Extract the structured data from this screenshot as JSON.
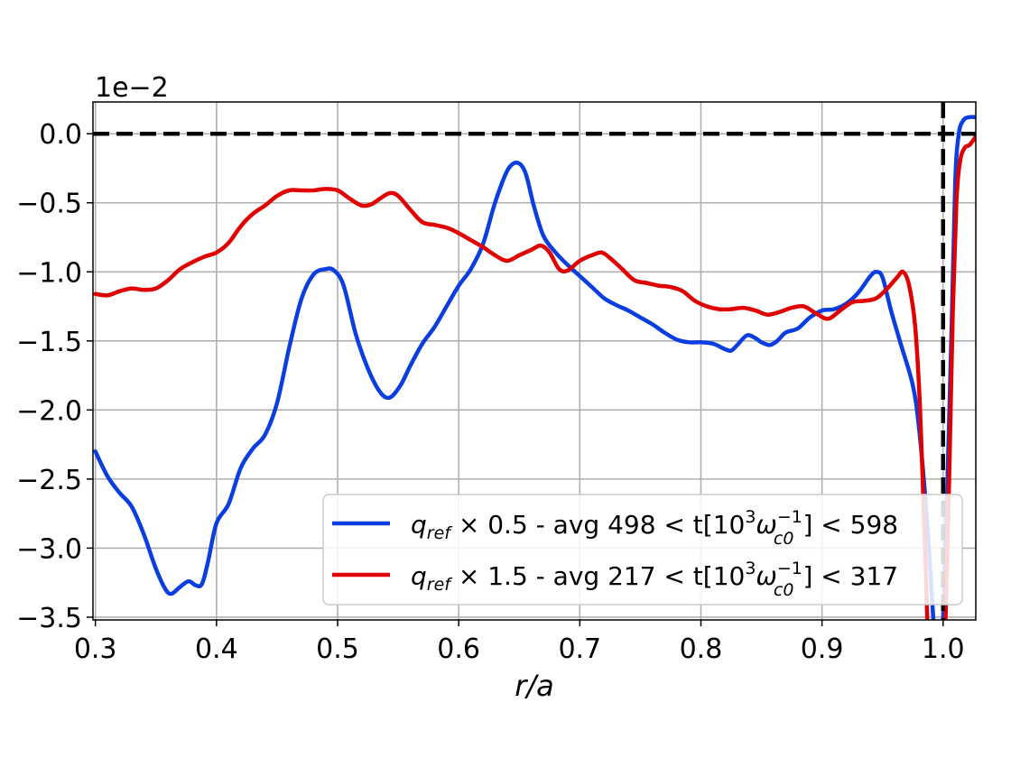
{
  "chart_data": {
    "type": "line",
    "xlabel": "r/a",
    "ylabel": "",
    "offset_label": "1e−2",
    "xlim": [
      0.298,
      1.027
    ],
    "ylim": [
      -3.52,
      0.23
    ],
    "xticks": [
      0.3,
      0.4,
      0.5,
      0.6,
      0.7,
      0.8,
      0.9,
      1.0
    ],
    "xtick_labels": [
      "0.3",
      "0.4",
      "0.5",
      "0.6",
      "0.7",
      "0.8",
      "0.9",
      "1.0"
    ],
    "yticks": [
      0.0,
      -0.5,
      -1.0,
      -1.5,
      -2.0,
      -2.5,
      -3.0,
      -3.5
    ],
    "ytick_labels": [
      "0.0",
      "−0.5",
      "−1.0",
      "−1.5",
      "−2.0",
      "−2.5",
      "−3.0",
      "−3.5"
    ],
    "grid": true,
    "legend_position": "lower-right",
    "reference_lines": {
      "horizontal_y": 0.0,
      "vertical_x": 1.0,
      "style": "dashed",
      "color": "#000000"
    },
    "series": [
      {
        "name": "q_ref × 0.5 - avg 498 < t[10^3 ω_c0^−1] < 598",
        "color": "#0a3ee0",
        "points": [
          [
            0.3,
            -2.3
          ],
          [
            0.31,
            -2.48
          ],
          [
            0.32,
            -2.6
          ],
          [
            0.33,
            -2.7
          ],
          [
            0.34,
            -2.9
          ],
          [
            0.35,
            -3.15
          ],
          [
            0.358,
            -3.3
          ],
          [
            0.363,
            -3.33
          ],
          [
            0.37,
            -3.28
          ],
          [
            0.377,
            -3.24
          ],
          [
            0.383,
            -3.27
          ],
          [
            0.388,
            -3.26
          ],
          [
            0.393,
            -3.1
          ],
          [
            0.4,
            -2.82
          ],
          [
            0.41,
            -2.68
          ],
          [
            0.42,
            -2.42
          ],
          [
            0.43,
            -2.28
          ],
          [
            0.44,
            -2.18
          ],
          [
            0.45,
            -1.95
          ],
          [
            0.46,
            -1.55
          ],
          [
            0.47,
            -1.2
          ],
          [
            0.48,
            -1.02
          ],
          [
            0.49,
            -0.98
          ],
          [
            0.497,
            -0.99
          ],
          [
            0.505,
            -1.1
          ],
          [
            0.515,
            -1.45
          ],
          [
            0.525,
            -1.7
          ],
          [
            0.535,
            -1.87
          ],
          [
            0.543,
            -1.91
          ],
          [
            0.552,
            -1.82
          ],
          [
            0.56,
            -1.68
          ],
          [
            0.57,
            -1.52
          ],
          [
            0.58,
            -1.4
          ],
          [
            0.59,
            -1.25
          ],
          [
            0.6,
            -1.1
          ],
          [
            0.61,
            -0.98
          ],
          [
            0.62,
            -0.8
          ],
          [
            0.63,
            -0.5
          ],
          [
            0.64,
            -0.27
          ],
          [
            0.648,
            -0.21
          ],
          [
            0.655,
            -0.28
          ],
          [
            0.662,
            -0.52
          ],
          [
            0.67,
            -0.74
          ],
          [
            0.68,
            -0.86
          ],
          [
            0.69,
            -0.95
          ],
          [
            0.7,
            -1.03
          ],
          [
            0.71,
            -1.11
          ],
          [
            0.72,
            -1.19
          ],
          [
            0.73,
            -1.24
          ],
          [
            0.74,
            -1.28
          ],
          [
            0.75,
            -1.33
          ],
          [
            0.76,
            -1.38
          ],
          [
            0.77,
            -1.44
          ],
          [
            0.78,
            -1.49
          ],
          [
            0.79,
            -1.51
          ],
          [
            0.8,
            -1.51
          ],
          [
            0.81,
            -1.52
          ],
          [
            0.82,
            -1.56
          ],
          [
            0.825,
            -1.57
          ],
          [
            0.83,
            -1.53
          ],
          [
            0.838,
            -1.46
          ],
          [
            0.845,
            -1.48
          ],
          [
            0.85,
            -1.51
          ],
          [
            0.857,
            -1.53
          ],
          [
            0.863,
            -1.5
          ],
          [
            0.87,
            -1.44
          ],
          [
            0.88,
            -1.41
          ],
          [
            0.89,
            -1.33
          ],
          [
            0.9,
            -1.28
          ],
          [
            0.91,
            -1.27
          ],
          [
            0.92,
            -1.23
          ],
          [
            0.93,
            -1.15
          ],
          [
            0.94,
            -1.03
          ],
          [
            0.945,
            -1.0
          ],
          [
            0.95,
            -1.04
          ],
          [
            0.957,
            -1.28
          ],
          [
            0.965,
            -1.52
          ],
          [
            0.975,
            -1.82
          ],
          [
            0.98,
            -2.12
          ],
          [
            0.985,
            -2.6
          ],
          [
            0.989,
            -3.1
          ],
          [
            0.992,
            -3.52
          ]
        ],
        "points_after_axis": [
          [
            1.0,
            -3.52
          ],
          [
            1.003,
            -2.7
          ],
          [
            1.007,
            -1.4
          ],
          [
            1.01,
            -0.35
          ],
          [
            1.013,
            0.0
          ],
          [
            1.017,
            0.1
          ],
          [
            1.022,
            0.12
          ],
          [
            1.027,
            0.12
          ]
        ]
      },
      {
        "name": "q_ref × 1.5 - avg 217 < t[10^3 ω_c0^−1] < 317",
        "color": "#e00000",
        "points": [
          [
            0.3,
            -1.16
          ],
          [
            0.31,
            -1.17
          ],
          [
            0.32,
            -1.14
          ],
          [
            0.33,
            -1.12
          ],
          [
            0.34,
            -1.13
          ],
          [
            0.35,
            -1.12
          ],
          [
            0.36,
            -1.06
          ],
          [
            0.37,
            -0.98
          ],
          [
            0.38,
            -0.93
          ],
          [
            0.39,
            -0.89
          ],
          [
            0.4,
            -0.86
          ],
          [
            0.41,
            -0.79
          ],
          [
            0.42,
            -0.67
          ],
          [
            0.43,
            -0.58
          ],
          [
            0.44,
            -0.52
          ],
          [
            0.45,
            -0.45
          ],
          [
            0.46,
            -0.41
          ],
          [
            0.47,
            -0.41
          ],
          [
            0.48,
            -0.41
          ],
          [
            0.49,
            -0.4
          ],
          [
            0.5,
            -0.41
          ],
          [
            0.51,
            -0.47
          ],
          [
            0.52,
            -0.52
          ],
          [
            0.528,
            -0.51
          ],
          [
            0.535,
            -0.47
          ],
          [
            0.543,
            -0.43
          ],
          [
            0.55,
            -0.45
          ],
          [
            0.56,
            -0.55
          ],
          [
            0.57,
            -0.64
          ],
          [
            0.58,
            -0.66
          ],
          [
            0.59,
            -0.68
          ],
          [
            0.6,
            -0.72
          ],
          [
            0.61,
            -0.77
          ],
          [
            0.62,
            -0.82
          ],
          [
            0.63,
            -0.88
          ],
          [
            0.64,
            -0.92
          ],
          [
            0.65,
            -0.88
          ],
          [
            0.66,
            -0.84
          ],
          [
            0.668,
            -0.81
          ],
          [
            0.675,
            -0.86
          ],
          [
            0.683,
            -0.98
          ],
          [
            0.69,
            -0.99
          ],
          [
            0.7,
            -0.92
          ],
          [
            0.71,
            -0.88
          ],
          [
            0.718,
            -0.86
          ],
          [
            0.725,
            -0.9
          ],
          [
            0.735,
            -0.98
          ],
          [
            0.745,
            -1.06
          ],
          [
            0.755,
            -1.08
          ],
          [
            0.765,
            -1.1
          ],
          [
            0.775,
            -1.11
          ],
          [
            0.785,
            -1.14
          ],
          [
            0.795,
            -1.21
          ],
          [
            0.805,
            -1.25
          ],
          [
            0.815,
            -1.27
          ],
          [
            0.825,
            -1.27
          ],
          [
            0.835,
            -1.26
          ],
          [
            0.845,
            -1.28
          ],
          [
            0.855,
            -1.31
          ],
          [
            0.865,
            -1.29
          ],
          [
            0.875,
            -1.26
          ],
          [
            0.885,
            -1.25
          ],
          [
            0.895,
            -1.3
          ],
          [
            0.905,
            -1.34
          ],
          [
            0.915,
            -1.28
          ],
          [
            0.925,
            -1.22
          ],
          [
            0.935,
            -1.21
          ],
          [
            0.945,
            -1.19
          ],
          [
            0.955,
            -1.11
          ],
          [
            0.962,
            -1.04
          ],
          [
            0.967,
            -1.0
          ],
          [
            0.972,
            -1.1
          ],
          [
            0.977,
            -1.4
          ],
          [
            0.981,
            -2.0
          ],
          [
            0.985,
            -3.0
          ],
          [
            0.987,
            -3.52
          ]
        ],
        "points_after_axis": [
          [
            1.002,
            -3.52
          ],
          [
            1.005,
            -2.5
          ],
          [
            1.008,
            -1.3
          ],
          [
            1.011,
            -0.5
          ],
          [
            1.014,
            -0.2
          ],
          [
            1.018,
            -0.1
          ],
          [
            1.022,
            -0.08
          ],
          [
            1.027,
            -0.02
          ]
        ]
      }
    ]
  },
  "legend": {
    "entries": [
      {
        "math_main": "q",
        "math_sub": "ref",
        "rest_a": " × 0.5 - avg 498 < t[10",
        "sup_a": "3",
        "omega": "ω",
        "omega_sup": "−1",
        "omega_sub": "c0",
        "rest_b": "] < 598",
        "color": "#0a3ee0"
      },
      {
        "math_main": "q",
        "math_sub": "ref",
        "rest_a": " × 1.5 - avg 217 < t[10",
        "sup_a": "3",
        "omega": "ω",
        "omega_sup": "−1",
        "omega_sub": "c0",
        "rest_b": "] < 317",
        "color": "#e00000"
      }
    ]
  }
}
